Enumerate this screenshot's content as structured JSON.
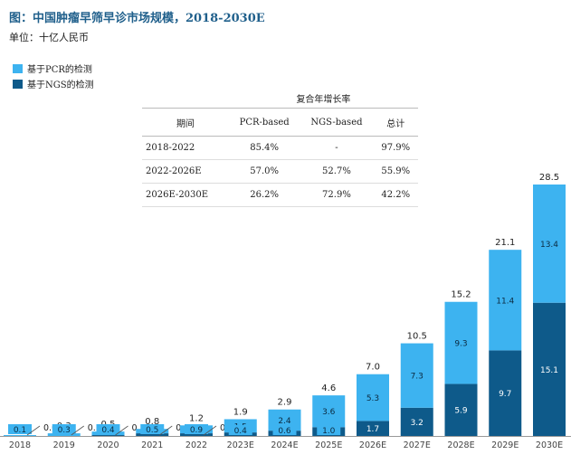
{
  "title": "图：中国肿瘤早筛早诊市场规模，2018-2030E",
  "unit": "单位：十亿人民币",
  "legend": [
    {
      "label": "基于PCR的检测",
      "color": "#3db3f0"
    },
    {
      "label": "基于NGS的检测",
      "color": "#0e5a8a"
    }
  ],
  "cagr_table": {
    "super_header": "复合年增长率",
    "headers": [
      "期间",
      "PCR-based",
      "NGS-based",
      "总计"
    ],
    "rows": [
      [
        "2018-2022",
        "85.4%",
        "-",
        "97.9%"
      ],
      [
        "2022-2026E",
        "57.0%",
        "52.7%",
        "55.9%"
      ],
      [
        "2026E-2030E",
        "26.2%",
        "72.9%",
        "42.2%"
      ]
    ]
  },
  "chart_data": {
    "type": "bar",
    "stacked": true,
    "categories": [
      "2018",
      "2019",
      "2020",
      "2021",
      "2022",
      "2023E",
      "2024E",
      "2025E",
      "2026E",
      "2027E",
      "2028E",
      "2029E",
      "2030E"
    ],
    "series": [
      {
        "name": "基于NGS的检测",
        "values": [
          0.0,
          0.0,
          0.1,
          0.3,
          0.3,
          0.4,
          0.6,
          1.0,
          1.7,
          3.2,
          5.9,
          9.7,
          15.1
        ]
      },
      {
        "name": "基于PCR的检测",
        "values": [
          0.1,
          0.3,
          0.4,
          0.5,
          0.9,
          1.5,
          2.4,
          3.6,
          5.3,
          7.3,
          9.3,
          11.4,
          13.4
        ]
      }
    ],
    "totals": [
      0.1,
      0.3,
      0.5,
      0.8,
      1.2,
      1.9,
      2.9,
      4.6,
      7.0,
      10.5,
      15.2,
      21.1,
      28.5
    ],
    "colors": {
      "pcr": "#3db3f0",
      "ngs": "#0e5a8a"
    },
    "ylim": [
      0,
      28.5
    ]
  }
}
